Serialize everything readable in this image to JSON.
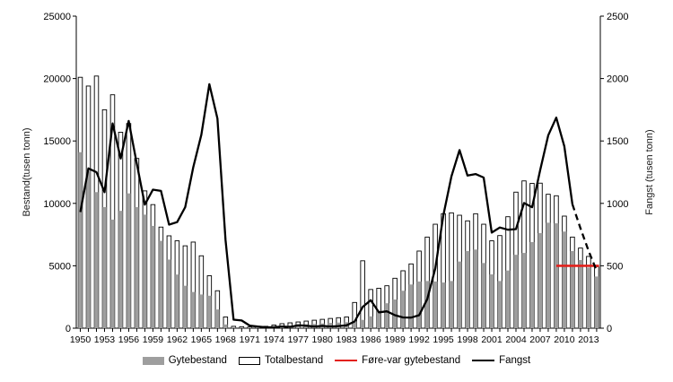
{
  "figure": {
    "background": "#ffffff",
    "bar_fill_color": "#9e9e9e",
    "bar_outline_color": "#000000",
    "catch_line_color": "#000000",
    "limit_line_color": "#e3201b"
  },
  "legend": {
    "position": "bottom",
    "items": [
      {
        "label": "Gytebestand",
        "swatch": "gray-bar"
      },
      {
        "label": "Totalbestand",
        "swatch": "outline-bar"
      },
      {
        "label": "Føre-var gytebestand",
        "swatch": "red-line"
      },
      {
        "label": "Fangst",
        "swatch": "black-line"
      }
    ]
  },
  "chart_data": {
    "type": "bar",
    "subtype": "combo-bar-line-dual-axis",
    "grid": false,
    "left_axis": {
      "label": "Bestand(tusen tonn)",
      "min": 0,
      "max": 25000,
      "tick_step": 5000,
      "tick_labels": [
        "0",
        "5000",
        "10000",
        "15000",
        "20000",
        "25000"
      ]
    },
    "right_axis": {
      "label": "Fangst (tusen tonn)",
      "min": 0,
      "max": 2500,
      "tick_step": 500,
      "tick_labels": [
        "0",
        "500",
        "1000",
        "1500",
        "2000",
        "2500"
      ]
    },
    "x_axis": {
      "label_every_years": 3,
      "first_label": 1950,
      "last_label": 2013,
      "tick_labels": [
        "1950",
        "1953",
        "1956",
        "1959",
        "1962",
        "1965",
        "1968",
        "1971",
        "1974",
        "1977",
        "1980",
        "1983",
        "1986",
        "1989",
        "1992",
        "1995",
        "1998",
        "2001",
        "2004",
        "2007",
        "2010",
        "2013"
      ]
    },
    "years": [
      1950,
      1951,
      1952,
      1953,
      1954,
      1955,
      1956,
      1957,
      1958,
      1959,
      1960,
      1961,
      1962,
      1963,
      1964,
      1965,
      1966,
      1967,
      1968,
      1969,
      1970,
      1971,
      1972,
      1973,
      1974,
      1975,
      1976,
      1977,
      1978,
      1979,
      1980,
      1981,
      1982,
      1983,
      1984,
      1985,
      1986,
      1987,
      1988,
      1989,
      1990,
      1991,
      1992,
      1993,
      1994,
      1995,
      1996,
      1997,
      1998,
      1999,
      2000,
      2001,
      2002,
      2003,
      2004,
      2005,
      2006,
      2007,
      2008,
      2009,
      2010,
      2011,
      2012,
      2013,
      2014
    ],
    "series": [
      {
        "name": "Gytebestand",
        "type": "bar",
        "axis": "left",
        "color": "#9e9e9e",
        "values": [
          14100,
          12600,
          10900,
          9700,
          8700,
          9400,
          10800,
          9700,
          9100,
          8200,
          7000,
          5500,
          4300,
          3400,
          2900,
          2700,
          2600,
          1500,
          300,
          80,
          60,
          50,
          50,
          80,
          120,
          180,
          220,
          260,
          300,
          340,
          380,
          420,
          450,
          480,
          550,
          670,
          950,
          1400,
          2000,
          2300,
          3000,
          3500,
          3740,
          3780,
          3740,
          3660,
          3780,
          5340,
          6180,
          6300,
          5220,
          4310,
          3780,
          4620,
          5880,
          6030,
          6900,
          7620,
          8450,
          8400,
          7740,
          6180,
          5460,
          4860,
          4140
        ]
      },
      {
        "name": "Totalbestand",
        "type": "bar-outline",
        "axis": "left",
        "color": "#ffffff",
        "values": [
          20100,
          19400,
          20200,
          17500,
          18700,
          15700,
          16400,
          13600,
          11000,
          9900,
          8100,
          7400,
          7000,
          6600,
          6900,
          5800,
          4200,
          3000,
          900,
          150,
          120,
          100,
          100,
          150,
          250,
          360,
          430,
          500,
          570,
          640,
          710,
          780,
          840,
          900,
          2060,
          5400,
          3100,
          3200,
          3400,
          4000,
          4600,
          5150,
          6180,
          7300,
          8330,
          9170,
          9240,
          9050,
          8600,
          9170,
          8330,
          7000,
          7420,
          8930,
          10900,
          11800,
          11600,
          11620,
          10730,
          10610,
          8980,
          7300,
          6420,
          5750,
          4930
        ]
      },
      {
        "name": "Føre-var gytebestand",
        "type": "line",
        "axis": "right",
        "color": "#e3201b",
        "constant_value": 500,
        "from_year": 2009,
        "to_year": 2014.3
      },
      {
        "name": "Fangst",
        "type": "line",
        "axis": "right",
        "color": "#000000",
        "dash_from_year": 2011,
        "values": [
          930,
          1280,
          1250,
          1090,
          1640,
          1360,
          1660,
          1320,
          990,
          1110,
          1100,
          830,
          850,
          970,
          1290,
          1550,
          1955,
          1680,
          710,
          68,
          62,
          21,
          13,
          7,
          8,
          14,
          10,
          23,
          20,
          13,
          19,
          14,
          17,
          23,
          54,
          170,
          225,
          127,
          135,
          104,
          86,
          85,
          104,
          232,
          479,
          905,
          1217,
          1427,
          1223,
          1235,
          1207,
          766,
          807,
          789,
          794,
          1003,
          969,
          1267,
          1546,
          1687,
          1457,
          993,
          800,
          620,
          460
        ]
      }
    ]
  }
}
